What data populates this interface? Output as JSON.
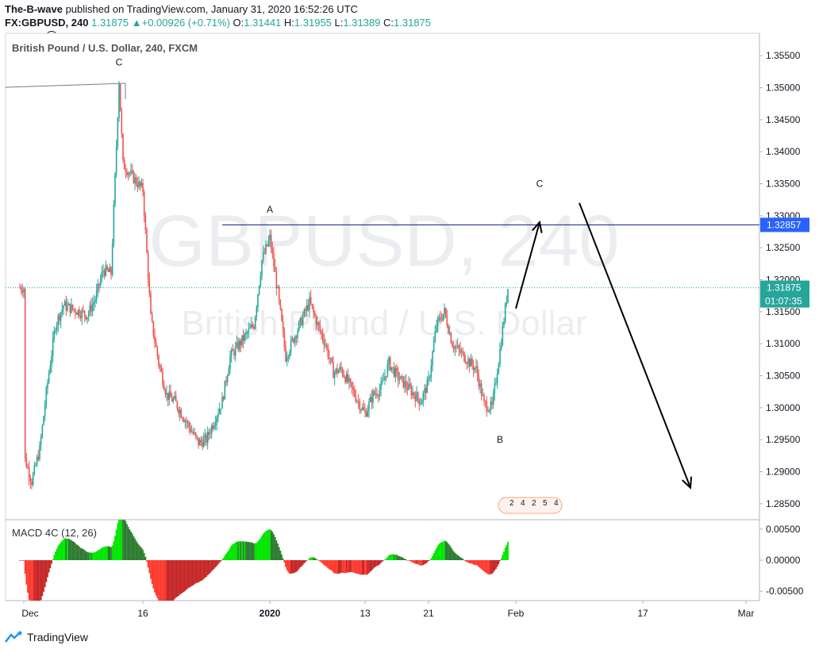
{
  "header": {
    "publisher": "The-B-wave",
    "published_text": " published on TradingView.com, January 31, 2020 16:52:26 UTC",
    "symbol": "FX:GBPUSD, 240",
    "last": "1.31875",
    "change": "+0.00926 (+0.71%)",
    "o_label": "O:",
    "o": "1.31441",
    "h_label": "H:",
    "h": "1.31955",
    "l_label": "L:",
    "l": "1.31389",
    "c_label": "C:",
    "c": "1.31875",
    "marker_b": "B"
  },
  "footer": {
    "brand": "TradingView"
  },
  "chart_data": {
    "type": "candlestick",
    "title": "British Pound / U.S. Dollar, 240, FXCM",
    "watermark_symbol": "GBPUSD, 240",
    "watermark_name": "British Pound / U.S. Dollar",
    "y_ticks": [
      "1.35500",
      "1.35000",
      "1.34500",
      "1.34000",
      "1.33500",
      "1.33000",
      "1.32500",
      "1.32000",
      "1.31500",
      "1.31000",
      "1.30500",
      "1.30000",
      "1.29500",
      "1.29000",
      "1.28500"
    ],
    "ylim": [
      1.2825,
      1.3585
    ],
    "x_ticks": [
      "Dec",
      "16",
      "2020",
      "13",
      "21",
      "Feb",
      "17",
      "Mar"
    ],
    "price_path": [
      {
        "x": "Dec 1",
        "y": 1.2925
      },
      {
        "x": "Dec 2",
        "y": 1.2885
      },
      {
        "x": "Dec 3",
        "y": 1.2935
      },
      {
        "x": "Dec 4",
        "y": 1.304
      },
      {
        "x": "Dec 5",
        "y": 1.313
      },
      {
        "x": "Dec 6",
        "y": 1.316
      },
      {
        "x": "Dec 9",
        "y": 1.3145
      },
      {
        "x": "Dec 10",
        "y": 1.317
      },
      {
        "x": "Dec 11",
        "y": 1.3215
      },
      {
        "x": "Dec 12",
        "y": 1.321
      },
      {
        "x": "Dec 13",
        "y": 1.351
      },
      {
        "x": "Dec 13b",
        "y": 1.338
      },
      {
        "x": "Dec 16",
        "y": 1.334
      },
      {
        "x": "Dec 17",
        "y": 1.314
      },
      {
        "x": "Dec 18",
        "y": 1.307
      },
      {
        "x": "Dec 19",
        "y": 1.302
      },
      {
        "x": "Dec 20",
        "y": 1.301
      },
      {
        "x": "Dec 23",
        "y": 1.2945
      },
      {
        "x": "Dec 24",
        "y": 1.295
      },
      {
        "x": "Dec 26",
        "y": 1.301
      },
      {
        "x": "Dec 27",
        "y": 1.308
      },
      {
        "x": "Dec 30",
        "y": 1.313
      },
      {
        "x": "Dec 31",
        "y": 1.323
      },
      {
        "x": "Jan 1",
        "y": 1.3265
      },
      {
        "x": "Jan 2",
        "y": 1.318
      },
      {
        "x": "Jan 3",
        "y": 1.308
      },
      {
        "x": "Jan 6",
        "y": 1.3165
      },
      {
        "x": "Jan 7",
        "y": 1.313
      },
      {
        "x": "Jan 8",
        "y": 1.31
      },
      {
        "x": "Jan 9",
        "y": 1.3055
      },
      {
        "x": "Jan 10",
        "y": 1.306
      },
      {
        "x": "Jan 13",
        "y": 1.299
      },
      {
        "x": "Jan 14",
        "y": 1.302
      },
      {
        "x": "Jan 15",
        "y": 1.303
      },
      {
        "x": "Jan 16",
        "y": 1.307
      },
      {
        "x": "Jan 17",
        "y": 1.305
      },
      {
        "x": "Jan 20",
        "y": 1.301
      },
      {
        "x": "Jan 21",
        "y": 1.304
      },
      {
        "x": "Jan 22",
        "y": 1.313
      },
      {
        "x": "Jan 23",
        "y": 1.315
      },
      {
        "x": "Jan 24",
        "y": 1.31
      },
      {
        "x": "Jan 27",
        "y": 1.306
      },
      {
        "x": "Jan 28",
        "y": 1.3005
      },
      {
        "x": "Jan 29",
        "y": 1.3
      },
      {
        "x": "Jan 30",
        "y": 1.309
      },
      {
        "x": "Jan 31",
        "y": 1.31875
      }
    ],
    "horizontal_line": {
      "y": 1.32857,
      "label": "1.32857"
    },
    "current_price": {
      "y": 1.31875,
      "label": "1.31875",
      "countdown": "01:07:35"
    },
    "wave_labels": [
      {
        "text": "C",
        "x": "Dec 13",
        "y": 1.3535
      },
      {
        "text": "A",
        "x": "Jan 1",
        "y": 1.3305
      },
      {
        "text": "B",
        "x": "Jan 30",
        "y": 1.2945
      },
      {
        "text": "C",
        "x": "Feb 4",
        "y": 1.3345
      }
    ],
    "projection_up": [
      {
        "x": "Feb 1",
        "y": 1.3155
      },
      {
        "x": "Feb 4",
        "y": 1.329
      }
    ],
    "projection_down": [
      {
        "x": "Feb 9",
        "y": 1.332
      },
      {
        "x": "Feb 23",
        "y": 1.2875
      }
    ],
    "macd": {
      "title": "MACD 4C (12, 26)",
      "y_ticks": [
        "0.00500",
        "0.00000",
        "-0.00500"
      ],
      "ylim": [
        -0.0065,
        0.0065
      ]
    },
    "colors": {
      "up": "#26a69a",
      "down": "#ef5350",
      "hline": "#0d1a8c",
      "price_label": "#26a69a",
      "hline_label": "#2962ff"
    },
    "events_marker": [
      "2",
      "4",
      "2",
      "5",
      "4"
    ]
  }
}
